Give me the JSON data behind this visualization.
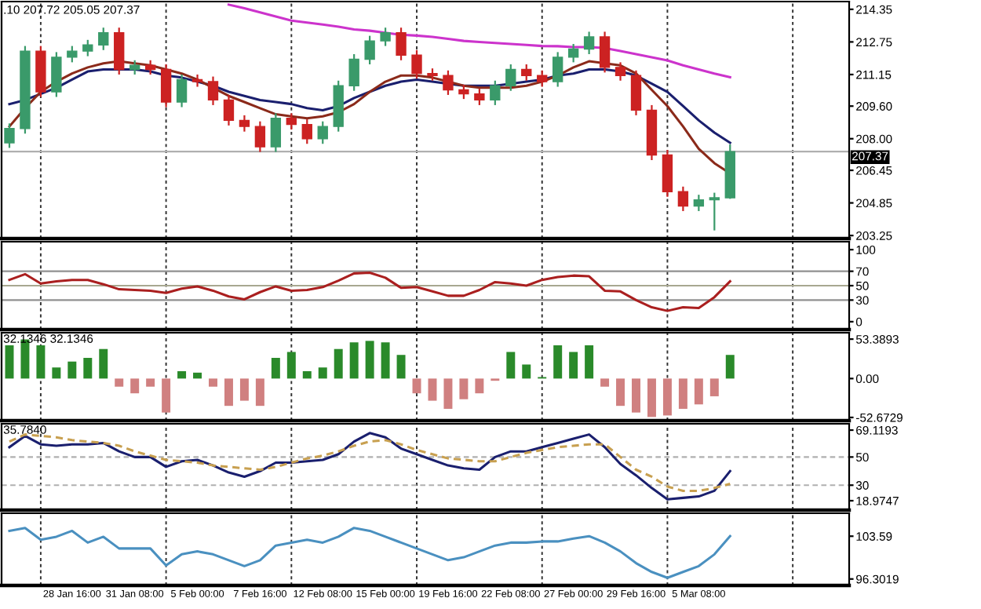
{
  "chart_data": [
    {
      "type": "candlestick",
      "categories": [
        null,
        null,
        null,
        null,
        null,
        null,
        null,
        null,
        null,
        null,
        null,
        null,
        null,
        null,
        null,
        null,
        null,
        null,
        null,
        null,
        null,
        null,
        null,
        null,
        null,
        null,
        null,
        null,
        null,
        null,
        null,
        null,
        null,
        null,
        null,
        null,
        null,
        null,
        null,
        null,
        null,
        null,
        null,
        null,
        null,
        null,
        null,
        null,
        null,
        null,
        null,
        null,
        null,
        null
      ],
      "ohlc": [
        [
          207.8,
          208.75,
          207.55,
          208.5
        ],
        [
          208.5,
          212.55,
          208.25,
          212.3
        ],
        [
          212.3,
          212.55,
          210.05,
          210.3
        ],
        [
          210.3,
          212.25,
          210.05,
          212.0
        ],
        [
          212.0,
          212.55,
          211.75,
          212.3
        ],
        [
          212.3,
          212.85,
          212.05,
          212.6
        ],
        [
          212.6,
          213.45,
          212.35,
          213.2
        ],
        [
          213.2,
          213.45,
          211.15,
          211.4
        ],
        [
          211.4,
          211.85,
          211.15,
          211.6
        ],
        [
          211.6,
          211.85,
          211.15,
          211.4
        ],
        [
          211.4,
          211.65,
          209.55,
          209.8
        ],
        [
          209.8,
          211.15,
          209.55,
          210.9
        ],
        [
          210.9,
          211.15,
          210.55,
          210.8
        ],
        [
          210.8,
          211.05,
          209.65,
          209.9
        ],
        [
          209.9,
          210.15,
          208.65,
          208.9
        ],
        [
          208.9,
          209.15,
          208.35,
          208.6
        ],
        [
          208.6,
          208.85,
          207.35,
          207.6
        ],
        [
          207.6,
          209.25,
          207.35,
          209.0
        ],
        [
          209.0,
          209.25,
          208.45,
          208.7
        ],
        [
          208.7,
          208.95,
          207.75,
          208.0
        ],
        [
          208.0,
          208.85,
          207.75,
          208.6
        ],
        [
          208.6,
          210.85,
          208.35,
          210.6
        ],
        [
          210.6,
          212.15,
          210.35,
          211.9
        ],
        [
          211.9,
          213.05,
          211.65,
          212.8
        ],
        [
          212.8,
          213.45,
          212.55,
          213.2
        ],
        [
          213.2,
          213.45,
          211.85,
          212.1
        ],
        [
          212.1,
          212.35,
          210.95,
          211.2
        ],
        [
          211.2,
          211.45,
          210.85,
          211.1
        ],
        [
          211.1,
          211.35,
          210.15,
          210.4
        ],
        [
          210.4,
          210.65,
          209.95,
          210.2
        ],
        [
          210.2,
          210.45,
          209.65,
          209.9
        ],
        [
          209.9,
          210.85,
          209.65,
          210.6
        ],
        [
          210.6,
          211.65,
          210.35,
          211.4
        ],
        [
          211.4,
          211.65,
          210.85,
          211.1
        ],
        [
          211.1,
          211.35,
          210.55,
          210.8
        ],
        [
          210.8,
          212.25,
          210.55,
          212.0
        ],
        [
          212.0,
          212.65,
          211.75,
          212.4
        ],
        [
          212.4,
          213.25,
          212.15,
          213.0
        ],
        [
          213.0,
          213.25,
          211.25,
          211.5
        ],
        [
          211.5,
          211.75,
          210.85,
          211.1
        ],
        [
          211.1,
          211.35,
          209.15,
          209.4
        ],
        [
          209.4,
          209.65,
          206.95,
          207.2
        ],
        [
          207.2,
          207.45,
          205.15,
          205.4
        ],
        [
          205.4,
          205.65,
          204.45,
          204.7
        ],
        [
          204.7,
          205.25,
          204.45,
          205.0
        ],
        [
          205.0,
          205.35,
          203.5,
          205.1
        ],
        [
          205.1,
          207.72,
          205.05,
          207.37
        ],
        null,
        null,
        null,
        null,
        null,
        null,
        null
      ],
      "colors": [
        "#3a9a6a",
        "#3a9a6a",
        "#cc2222",
        "#3a9a6a",
        "#3a9a6a",
        "#3a9a6a",
        "#3a9a6a",
        "#cc2222",
        "#3a9a6a",
        "#cc2222",
        "#cc2222",
        "#3a9a6a",
        "#cc2222",
        "#cc2222",
        "#cc2222",
        "#cc2222",
        "#cc2222",
        "#3a9a6a",
        "#cc2222",
        "#cc2222",
        "#3a9a6a",
        "#3a9a6a",
        "#3a9a6a",
        "#3a9a6a",
        "#3a9a6a",
        "#cc2222",
        "#cc2222",
        "#cc2222",
        "#cc2222",
        "#cc2222",
        "#cc2222",
        "#3a9a6a",
        "#3a9a6a",
        "#cc2222",
        "#cc2222",
        "#3a9a6a",
        "#3a9a6a",
        "#3a9a6a",
        "#cc2222",
        "#cc2222",
        "#cc2222",
        "#cc2222",
        "#cc2222",
        "#cc2222",
        "#3a9a6a",
        "#3a9a6a",
        "#3a9a6a",
        null,
        null,
        null,
        null,
        null,
        null,
        null
      ],
      "series": [
        {
          "type": "line",
          "color": "#cc33cc",
          "values": [
            null,
            null,
            null,
            null,
            null,
            null,
            null,
            null,
            null,
            null,
            null,
            null,
            null,
            null,
            214.58,
            214.4,
            214.2,
            214.0,
            213.8,
            213.7,
            213.6,
            213.5,
            213.36,
            213.3,
            213.2,
            213.1,
            213.06,
            213.0,
            212.9,
            212.8,
            212.75,
            212.7,
            212.65,
            212.6,
            212.55,
            212.54,
            212.5,
            212.5,
            212.45,
            212.3,
            212.15,
            212.0,
            211.84,
            211.6,
            211.4,
            211.2,
            211.02,
            null,
            null,
            null,
            null,
            null,
            null,
            null
          ]
        },
        {
          "type": "line",
          "color": "#1a1f6e",
          "values": [
            209.7,
            209.9,
            210.2,
            210.5,
            210.9,
            211.3,
            211.4,
            211.4,
            211.4,
            211.3,
            211.1,
            211.0,
            210.8,
            210.6,
            210.3,
            210.1,
            209.9,
            209.8,
            209.7,
            209.5,
            209.4,
            209.6,
            210.0,
            210.3,
            210.6,
            210.8,
            210.9,
            210.8,
            210.7,
            210.6,
            210.6,
            210.6,
            210.7,
            210.8,
            210.9,
            211.1,
            211.2,
            211.4,
            211.4,
            211.3,
            211.1,
            210.7,
            210.3,
            209.6,
            208.9,
            208.3,
            207.8,
            null,
            null,
            null,
            null,
            null,
            null,
            null
          ]
        },
        {
          "type": "line",
          "color": "#8b2a1a",
          "values": [
            208.6,
            209.5,
            210.3,
            210.8,
            211.2,
            211.5,
            211.7,
            211.8,
            211.7,
            211.6,
            211.4,
            211.2,
            210.9,
            210.5,
            210.1,
            209.8,
            209.5,
            209.2,
            209.1,
            209.0,
            209.1,
            209.3,
            209.7,
            210.3,
            210.8,
            211.1,
            211.1,
            211.0,
            210.8,
            210.6,
            210.5,
            210.5,
            210.5,
            210.6,
            210.8,
            211.1,
            211.5,
            211.8,
            211.7,
            211.6,
            211.2,
            210.4,
            209.6,
            208.6,
            207.5,
            206.8,
            206.3,
            null,
            null,
            null,
            null,
            null,
            null,
            null
          ]
        }
      ],
      "ylim": [
        203.1,
        214.73
      ],
      "yticks": [
        214.35,
        212.75,
        211.15,
        {
          "value": 209.6,
          "label": "209.60"
        },
        {
          "value": 208.0,
          "label": "208.00"
        },
        206.45,
        204.85,
        203.25
      ],
      "ref_lines": [
        {
          "axis": "y",
          "value": 207.37,
          "label": "207.37",
          "color": "#b0b0b0"
        }
      ],
      "annotations": [
        ".10 207.72 205.05 207.37"
      ],
      "grid": "x",
      "tick_labels": "y"
    },
    {
      "type": "line",
      "categories": [
        null,
        null,
        null,
        null,
        null,
        null,
        null,
        null,
        null,
        null,
        null,
        null,
        null,
        null,
        null,
        null,
        null,
        null,
        null,
        null,
        null,
        null,
        null,
        null,
        null,
        null,
        null,
        null,
        null,
        null,
        null,
        null,
        null,
        null,
        null,
        null,
        null,
        null,
        null,
        null,
        null,
        null,
        null,
        null,
        null,
        null,
        null,
        null,
        null,
        null,
        null,
        null,
        null,
        null
      ],
      "series": [
        {
          "color": "#aa1f1f",
          "values": [
            58,
            66,
            53,
            56,
            58,
            58,
            52,
            45,
            44,
            43,
            40,
            46,
            49,
            43,
            35,
            31,
            41,
            49,
            43,
            44,
            48,
            57,
            67,
            68,
            61,
            47,
            48,
            42,
            36,
            36,
            44,
            55,
            53,
            50,
            58,
            62,
            64,
            63,
            43,
            42,
            30,
            20,
            15,
            20,
            19,
            34,
            56,
            null,
            null,
            null,
            null,
            null,
            null,
            null
          ]
        }
      ],
      "ylim": [
        -11,
        111
      ],
      "yticks": [
        100,
        70,
        50,
        30,
        0
      ],
      "ref_lines": [
        {
          "axis": "y",
          "value": 70,
          "color": "#909090"
        },
        {
          "axis": "y",
          "value": 50,
          "color": "#a8a890"
        },
        {
          "axis": "y",
          "value": 30,
          "color": "#909090"
        }
      ],
      "grid": "x",
      "tick_labels": "y"
    },
    {
      "type": "bar",
      "categories": [
        null,
        null,
        null,
        null,
        null,
        null,
        null,
        null,
        null,
        null,
        null,
        null,
        null,
        null,
        null,
        null,
        null,
        null,
        null,
        null,
        null,
        null,
        null,
        null,
        null,
        null,
        null,
        null,
        null,
        null,
        null,
        null,
        null,
        null,
        null,
        null,
        null,
        null,
        null,
        null,
        null,
        null,
        null,
        null,
        null,
        null,
        null,
        null,
        null,
        null,
        null,
        null,
        null,
        null
      ],
      "values": [
        45,
        53,
        45,
        15,
        23,
        28,
        40,
        -11,
        -20,
        -11,
        -46,
        10,
        8,
        -11,
        -37,
        -30,
        -37,
        28,
        36,
        10,
        15,
        40,
        49,
        51,
        49,
        32,
        -20,
        -30,
        -41,
        -28,
        -20,
        -3,
        36,
        19,
        2,
        45,
        36,
        45,
        -11,
        -37,
        -46,
        -52,
        -50,
        -41,
        -35,
        -24,
        32,
        null,
        null,
        null,
        null,
        null,
        null,
        null
      ],
      "colors": [
        "#2a8a2a",
        "#2a8a2a",
        "#2a8a2a",
        "#2a8a2a",
        "#2a8a2a",
        "#2a8a2a",
        "#2a8a2a",
        "#d08080",
        "#d08080",
        "#d08080",
        "#d08080",
        "#2a8a2a",
        "#2a8a2a",
        "#d08080",
        "#d08080",
        "#d08080",
        "#d08080",
        "#2a8a2a",
        "#2a8a2a",
        "#2a8a2a",
        "#2a8a2a",
        "#2a8a2a",
        "#2a8a2a",
        "#2a8a2a",
        "#2a8a2a",
        "#2a8a2a",
        "#d08080",
        "#d08080",
        "#d08080",
        "#d08080",
        "#d08080",
        "#d08080",
        "#2a8a2a",
        "#2a8a2a",
        "#2a8a2a",
        "#2a8a2a",
        "#2a8a2a",
        "#2a8a2a",
        "#d08080",
        "#d08080",
        "#d08080",
        "#d08080",
        "#d08080",
        "#d08080",
        "#d08080",
        "#d08080",
        "#2a8a2a",
        null,
        null,
        null,
        null,
        null,
        null,
        null
      ],
      "ylim": [
        -57,
        62
      ],
      "yticks": [
        53.3893,
        {
          "value": 0,
          "label": "0.00"
        },
        -52.6729
      ],
      "annotations": [
        "32.1346 32.1346"
      ],
      "grid": "x",
      "tick_labels": "y"
    },
    {
      "type": "line",
      "categories": [
        null,
        null,
        null,
        null,
        null,
        null,
        null,
        null,
        null,
        null,
        null,
        null,
        null,
        null,
        null,
        null,
        null,
        null,
        null,
        null,
        null,
        null,
        null,
        null,
        null,
        null,
        null,
        null,
        null,
        null,
        null,
        null,
        null,
        null,
        null,
        null,
        null,
        null,
        null,
        null,
        null,
        null,
        null,
        null,
        null,
        null,
        null,
        null,
        null,
        null,
        null,
        null,
        null,
        null
      ],
      "series": [
        {
          "color": "#1a1f6e",
          "values": [
            57,
            65,
            59,
            58,
            59,
            59,
            60,
            54,
            50,
            50,
            43,
            47,
            48,
            44,
            39,
            36,
            40,
            46,
            46,
            47,
            48,
            52,
            61,
            67,
            64,
            56,
            52,
            48,
            44,
            42,
            41,
            50,
            54,
            54,
            57,
            60,
            63,
            66,
            57,
            45,
            37,
            28,
            20,
            21,
            22,
            26,
            40,
            null,
            null,
            null,
            null,
            null,
            null,
            null
          ]
        },
        {
          "color": "#c8a050",
          "line_style": "dashed",
          "values": [
            61,
            66,
            65,
            64,
            62,
            61,
            60,
            58,
            54,
            51,
            48,
            47,
            46,
            44,
            43,
            42,
            41,
            43,
            46,
            49,
            51,
            54,
            58,
            61,
            62,
            59,
            55,
            52,
            49,
            48,
            47,
            47,
            50,
            53,
            55,
            57,
            58,
            59,
            59,
            50,
            41,
            36,
            29,
            26,
            26,
            28,
            31,
            null,
            null,
            null,
            null,
            null,
            null,
            null
          ]
        }
      ],
      "ylim": [
        12.3,
        73.6
      ],
      "yticks": [
        69.1193,
        50,
        30,
        18.9747
      ],
      "ref_lines": [
        {
          "axis": "y",
          "value": 50,
          "color": "#b0b0b0",
          "line_style": "dashed"
        },
        {
          "axis": "y",
          "value": 30,
          "color": "#b0b0b0",
          "line_style": "dashed"
        }
      ],
      "annotations": [
        "35.7840"
      ],
      "grid": "x",
      "tick_labels": "y"
    },
    {
      "type": "line",
      "categories": [
        null,
        null,
        null,
        null,
        "28 Jan 16:00",
        null,
        null,
        null,
        "31 Jan 08:00",
        null,
        null,
        null,
        "5 Feb 00:00",
        null,
        null,
        null,
        "7 Feb 16:00",
        null,
        null,
        null,
        "12 Feb 08:00",
        null,
        null,
        null,
        "15 Feb 00:00",
        null,
        null,
        null,
        "19 Feb 16:00",
        null,
        null,
        null,
        "22 Feb 08:00",
        null,
        null,
        null,
        "27 Feb 00:00",
        null,
        null,
        null,
        "29 Feb 16:00",
        null,
        null,
        null,
        "5 Mar 08:00",
        null,
        null,
        null,
        null,
        null,
        null,
        null,
        null,
        null
      ],
      "series": [
        {
          "color": "#4a90c0",
          "values": [
            104.5,
            105.0,
            103.0,
            103.5,
            104.5,
            102.5,
            103.5,
            101.5,
            101.5,
            101.5,
            98.6,
            100.5,
            101.0,
            100.5,
            99.5,
            98.5,
            99.5,
            102.0,
            102.5,
            103.0,
            102.5,
            103.5,
            105.0,
            104.5,
            103.5,
            102.5,
            101.5,
            100.5,
            99.5,
            100.0,
            101.0,
            102.0,
            102.5,
            102.5,
            102.7,
            102.7,
            103.2,
            103.6,
            102.5,
            101.0,
            99.0,
            97.5,
            96.5,
            97.5,
            98.5,
            100.5,
            103.6,
            null,
            null,
            null,
            null,
            null,
            null,
            null
          ]
        }
      ],
      "ylim": [
        95.2,
        107.5
      ],
      "yticks": [
        103.59,
        96.3019
      ],
      "grid": "x"
    }
  ]
}
